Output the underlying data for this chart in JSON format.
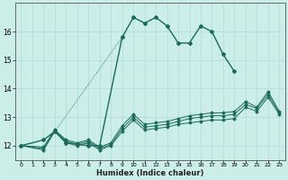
{
  "title": "",
  "xlabel": "Humidex (Indice chaleur)",
  "ylabel": "",
  "bg_color": "#cceee8",
  "grid_color": "#b8ddd8",
  "line_color": "#1a6b5a",
  "xlim": [
    -0.5,
    23.5
  ],
  "ylim": [
    11.5,
    17.0
  ],
  "yticks": [
    12,
    13,
    14,
    15,
    16
  ],
  "xticks": [
    0,
    1,
    2,
    3,
    4,
    5,
    6,
    7,
    8,
    9,
    10,
    11,
    12,
    13,
    14,
    15,
    16,
    17,
    18,
    19,
    20,
    21,
    22,
    23
  ],
  "lines": [
    {
      "x": [
        0,
        2,
        3,
        4,
        6,
        7,
        9,
        10,
        11,
        12,
        13,
        14,
        15,
        16,
        17,
        18,
        19,
        20,
        22
      ],
      "y": [
        12.0,
        12.2,
        12.5,
        12.1,
        12.0,
        12.0,
        15.8,
        16.5,
        16.3,
        16.5,
        16.2,
        15.6,
        15.6,
        16.2,
        16.0,
        15.2,
        14.6,
        null,
        null
      ]
    },
    {
      "x": [
        0,
        2,
        3,
        4,
        5,
        6,
        7,
        8,
        9,
        10,
        11,
        12,
        13,
        14,
        15,
        16,
        17,
        18,
        19,
        20,
        21,
        22,
        23
      ],
      "y": [
        12.0,
        11.85,
        12.5,
        12.1,
        12.0,
        12.1,
        11.85,
        12.0,
        12.5,
        12.9,
        12.55,
        12.6,
        12.65,
        12.75,
        12.8,
        12.85,
        12.9,
        12.9,
        12.95,
        13.35,
        13.2,
        13.7,
        13.1
      ]
    },
    {
      "x": [
        0,
        2,
        3,
        4,
        5,
        6,
        7,
        8,
        9,
        10,
        11,
        12,
        13,
        14,
        15,
        16,
        17,
        18,
        19,
        20,
        21,
        22,
        23
      ],
      "y": [
        12.0,
        11.9,
        12.55,
        12.15,
        12.05,
        12.15,
        11.9,
        12.05,
        12.6,
        13.0,
        12.65,
        12.7,
        12.75,
        12.85,
        12.95,
        13.0,
        13.05,
        13.05,
        13.1,
        13.45,
        13.3,
        13.8,
        13.15
      ]
    },
    {
      "x": [
        0,
        2,
        3,
        4,
        5,
        6,
        7,
        8,
        9,
        10,
        11,
        12,
        13,
        14,
        15,
        16,
        17,
        18,
        19,
        20,
        21,
        22,
        23
      ],
      "y": [
        12.0,
        11.95,
        12.55,
        12.2,
        12.1,
        12.2,
        11.95,
        12.1,
        12.7,
        13.1,
        12.75,
        12.8,
        12.85,
        12.95,
        13.05,
        13.1,
        13.15,
        13.15,
        13.2,
        13.55,
        13.35,
        13.9,
        13.2
      ]
    }
  ]
}
